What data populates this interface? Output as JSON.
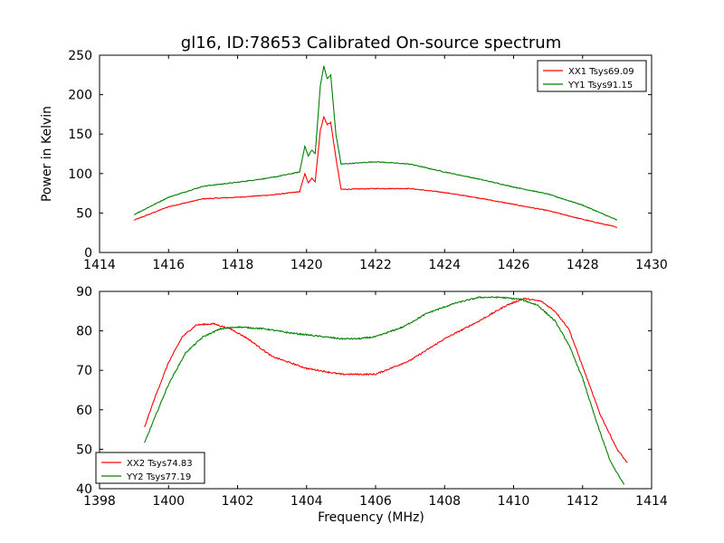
{
  "title": "gl16, ID:78653 Calibrated On-source spectrum",
  "chart_data": [
    {
      "type": "line",
      "ylabel": "Power in Kelvin",
      "xlabel": "",
      "xlim": [
        1414,
        1430
      ],
      "ylim": [
        0,
        250
      ],
      "xticks": [
        1414,
        1416,
        1418,
        1420,
        1422,
        1424,
        1426,
        1428,
        1430
      ],
      "yticks": [
        0,
        50,
        100,
        150,
        200,
        250
      ],
      "legend": "top-right",
      "series": [
        {
          "name": "XX1 Tsys69.09",
          "color": "#ff0000",
          "x": [
            1415.0,
            1416.0,
            1417.0,
            1418.0,
            1419.0,
            1419.8,
            1419.95,
            1420.05,
            1420.15,
            1420.25,
            1420.4,
            1420.5,
            1420.6,
            1420.7,
            1420.85,
            1421.0,
            1422.0,
            1423.0,
            1424.0,
            1425.0,
            1426.0,
            1427.0,
            1428.0,
            1429.0
          ],
          "y": [
            41,
            58,
            68,
            70,
            73,
            77,
            100,
            88,
            94,
            90,
            155,
            172,
            162,
            165,
            120,
            80,
            81,
            81,
            76,
            69,
            61,
            53,
            42,
            32
          ]
        },
        {
          "name": "YY1 Tsys91.15",
          "color": "#008000",
          "x": [
            1415.0,
            1416.0,
            1417.0,
            1418.0,
            1419.0,
            1419.8,
            1419.95,
            1420.05,
            1420.15,
            1420.25,
            1420.4,
            1420.5,
            1420.6,
            1420.7,
            1420.85,
            1421.0,
            1422.0,
            1423.0,
            1424.0,
            1425.0,
            1426.0,
            1427.0,
            1428.0,
            1429.0
          ],
          "y": [
            48,
            70,
            84,
            89,
            95,
            102,
            135,
            122,
            130,
            125,
            212,
            236,
            220,
            225,
            150,
            112,
            115,
            112,
            102,
            93,
            83,
            74,
            60,
            41
          ]
        }
      ]
    },
    {
      "type": "line",
      "ylabel": "",
      "xlabel": "Frequency (MHz)",
      "xlim": [
        1398,
        1414
      ],
      "ylim": [
        40,
        90
      ],
      "xticks": [
        1398,
        1400,
        1402,
        1404,
        1406,
        1408,
        1410,
        1412,
        1414
      ],
      "yticks": [
        40,
        50,
        60,
        70,
        80,
        90
      ],
      "legend": "bottom-left",
      "series": [
        {
          "name": "XX2 Tsys74.83",
          "color": "#ff0000",
          "x": [
            1399.3,
            1399.6,
            1400.0,
            1400.4,
            1400.8,
            1401.3,
            1401.8,
            1402.3,
            1403.0,
            1404.0,
            1405.0,
            1406.0,
            1407.0,
            1408.0,
            1409.0,
            1409.8,
            1410.3,
            1410.8,
            1411.2,
            1411.6,
            1412.0,
            1412.5,
            1413.0,
            1413.3
          ],
          "y": [
            55.5,
            63,
            72,
            78.5,
            81.5,
            81.8,
            80.5,
            78,
            73.5,
            70.5,
            69,
            69,
            72.5,
            78,
            82.5,
            86.5,
            88.2,
            87.5,
            85,
            80.5,
            71,
            59,
            50,
            46.5
          ]
        },
        {
          "name": "YY2 Tsys77.19",
          "color": "#008000",
          "x": [
            1399.3,
            1399.6,
            1400.0,
            1400.5,
            1401.0,
            1401.5,
            1402.0,
            1402.8,
            1403.5,
            1404.5,
            1405.0,
            1405.5,
            1406.0,
            1406.8,
            1407.5,
            1408.3,
            1409.0,
            1409.6,
            1410.2,
            1410.7,
            1411.2,
            1411.6,
            1412.0,
            1412.4,
            1412.8,
            1413.2
          ],
          "y": [
            51.5,
            58,
            66.5,
            74.5,
            78.5,
            80.5,
            81,
            80.5,
            79.5,
            78.5,
            78,
            78,
            78.5,
            81,
            84.5,
            87,
            88.5,
            88.5,
            88,
            86.5,
            82.5,
            76.5,
            68,
            57,
            47,
            41
          ]
        }
      ]
    }
  ]
}
